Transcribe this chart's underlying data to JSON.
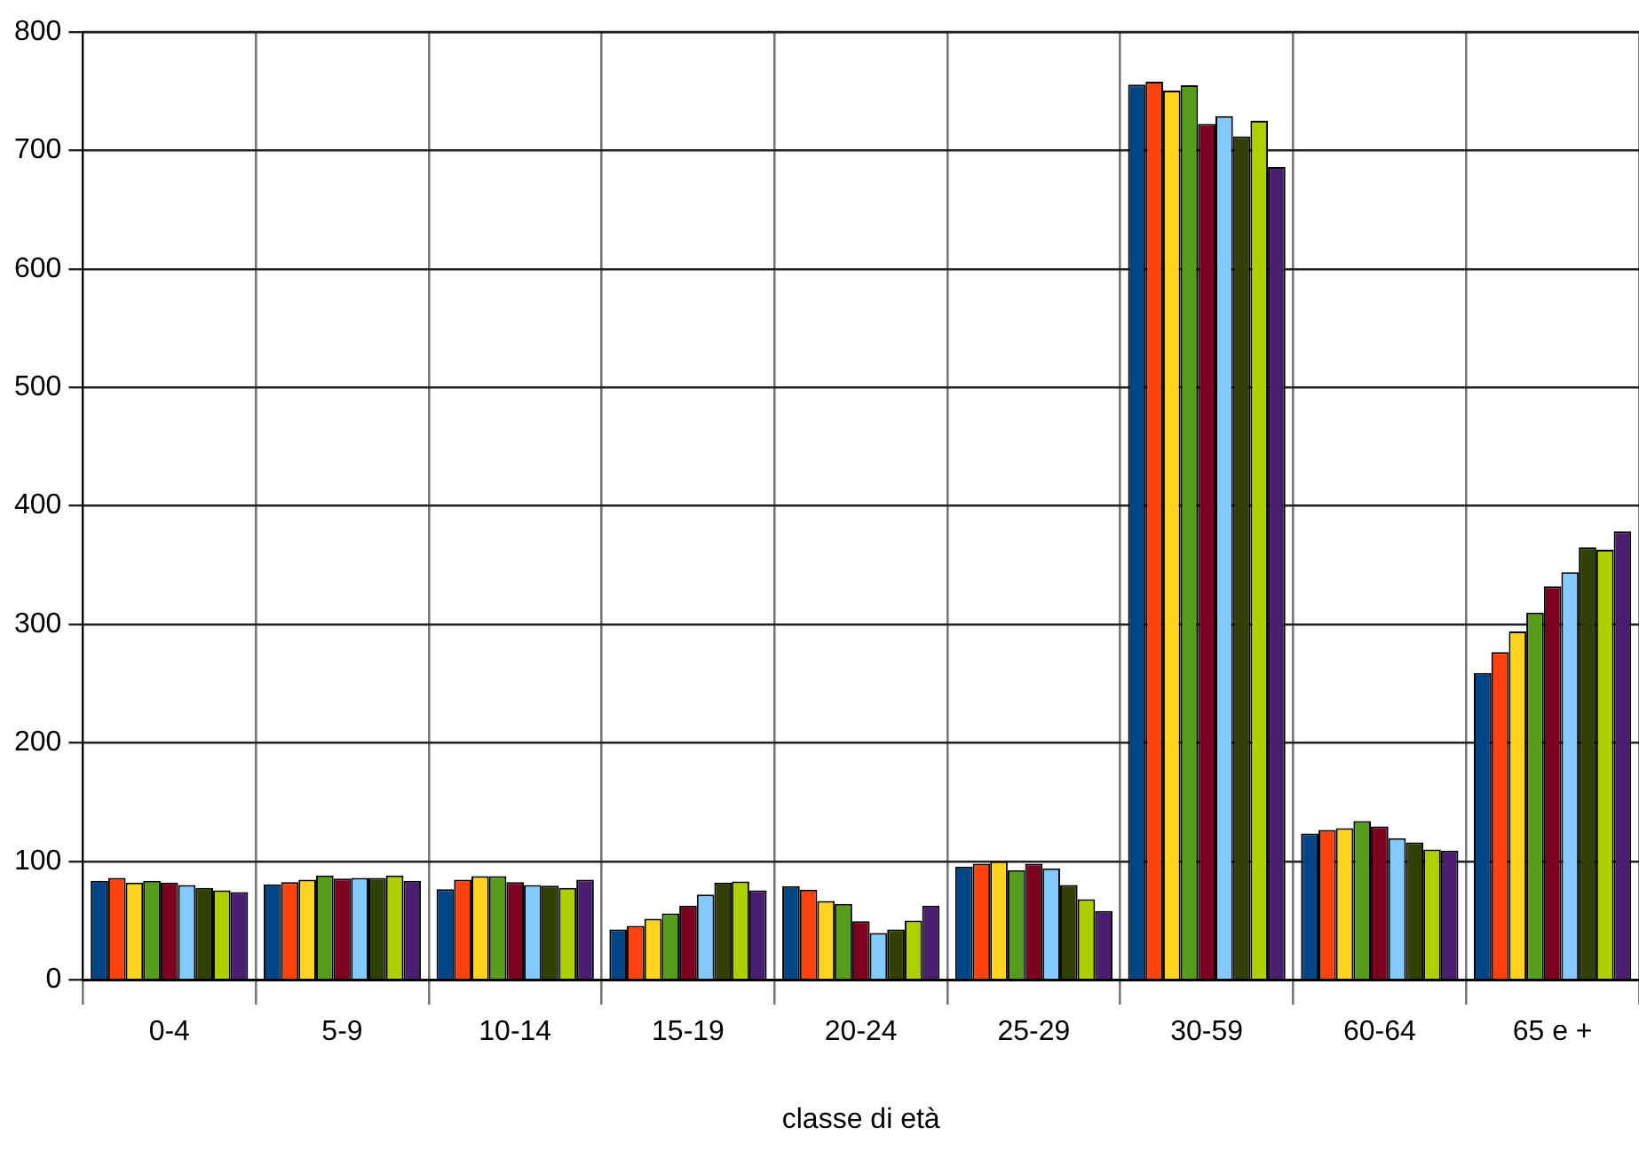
{
  "chart_data": {
    "type": "bar",
    "xlabel": "classe di età",
    "categories": [
      "0-4",
      "5-9",
      "10-14",
      "15-19",
      "20-24",
      "25-29",
      "30-59",
      "60-64",
      "65 e +"
    ],
    "series": [
      {
        "color": "#004586",
        "values": [
          83.5,
          80.5,
          76.5,
          42.5,
          79,
          95.5,
          755.5,
          123.5,
          259
        ]
      },
      {
        "color": "#ff420e",
        "values": [
          86,
          82.5,
          84.5,
          45.5,
          76,
          98,
          758,
          126.5,
          276.5
        ]
      },
      {
        "color": "#ffd320",
        "values": [
          82,
          84.5,
          87.5,
          51.5,
          66.5,
          100,
          750.5,
          128,
          294
        ]
      },
      {
        "color": "#579d1c",
        "values": [
          83.5,
          88,
          87.5,
          56,
          64,
          92.5,
          755,
          134,
          310
        ]
      },
      {
        "color": "#7e0021",
        "values": [
          82,
          85.5,
          82.5,
          62.5,
          49.5,
          98,
          722.5,
          129.5,
          332
        ]
      },
      {
        "color": "#83caff",
        "values": [
          80,
          86,
          80,
          72,
          39.5,
          94,
          729,
          119.5,
          344
        ]
      },
      {
        "color": "#314004",
        "values": [
          77.5,
          86,
          79.5,
          82,
          42.5,
          80,
          712,
          116,
          365
        ]
      },
      {
        "color": "#aecf00",
        "values": [
          75.5,
          88,
          77.5,
          83,
          50,
          68,
          725,
          110,
          363
        ]
      },
      {
        "color": "#4b1f6f",
        "values": [
          74,
          83.5,
          84.5,
          75.5,
          62.5,
          58,
          686,
          109,
          378.5
        ]
      }
    ],
    "ylim": [
      0,
      800
    ],
    "yticks": [
      0,
      100,
      200,
      300,
      400,
      500,
      600,
      700,
      800
    ],
    "grid": true,
    "legend": false
  }
}
